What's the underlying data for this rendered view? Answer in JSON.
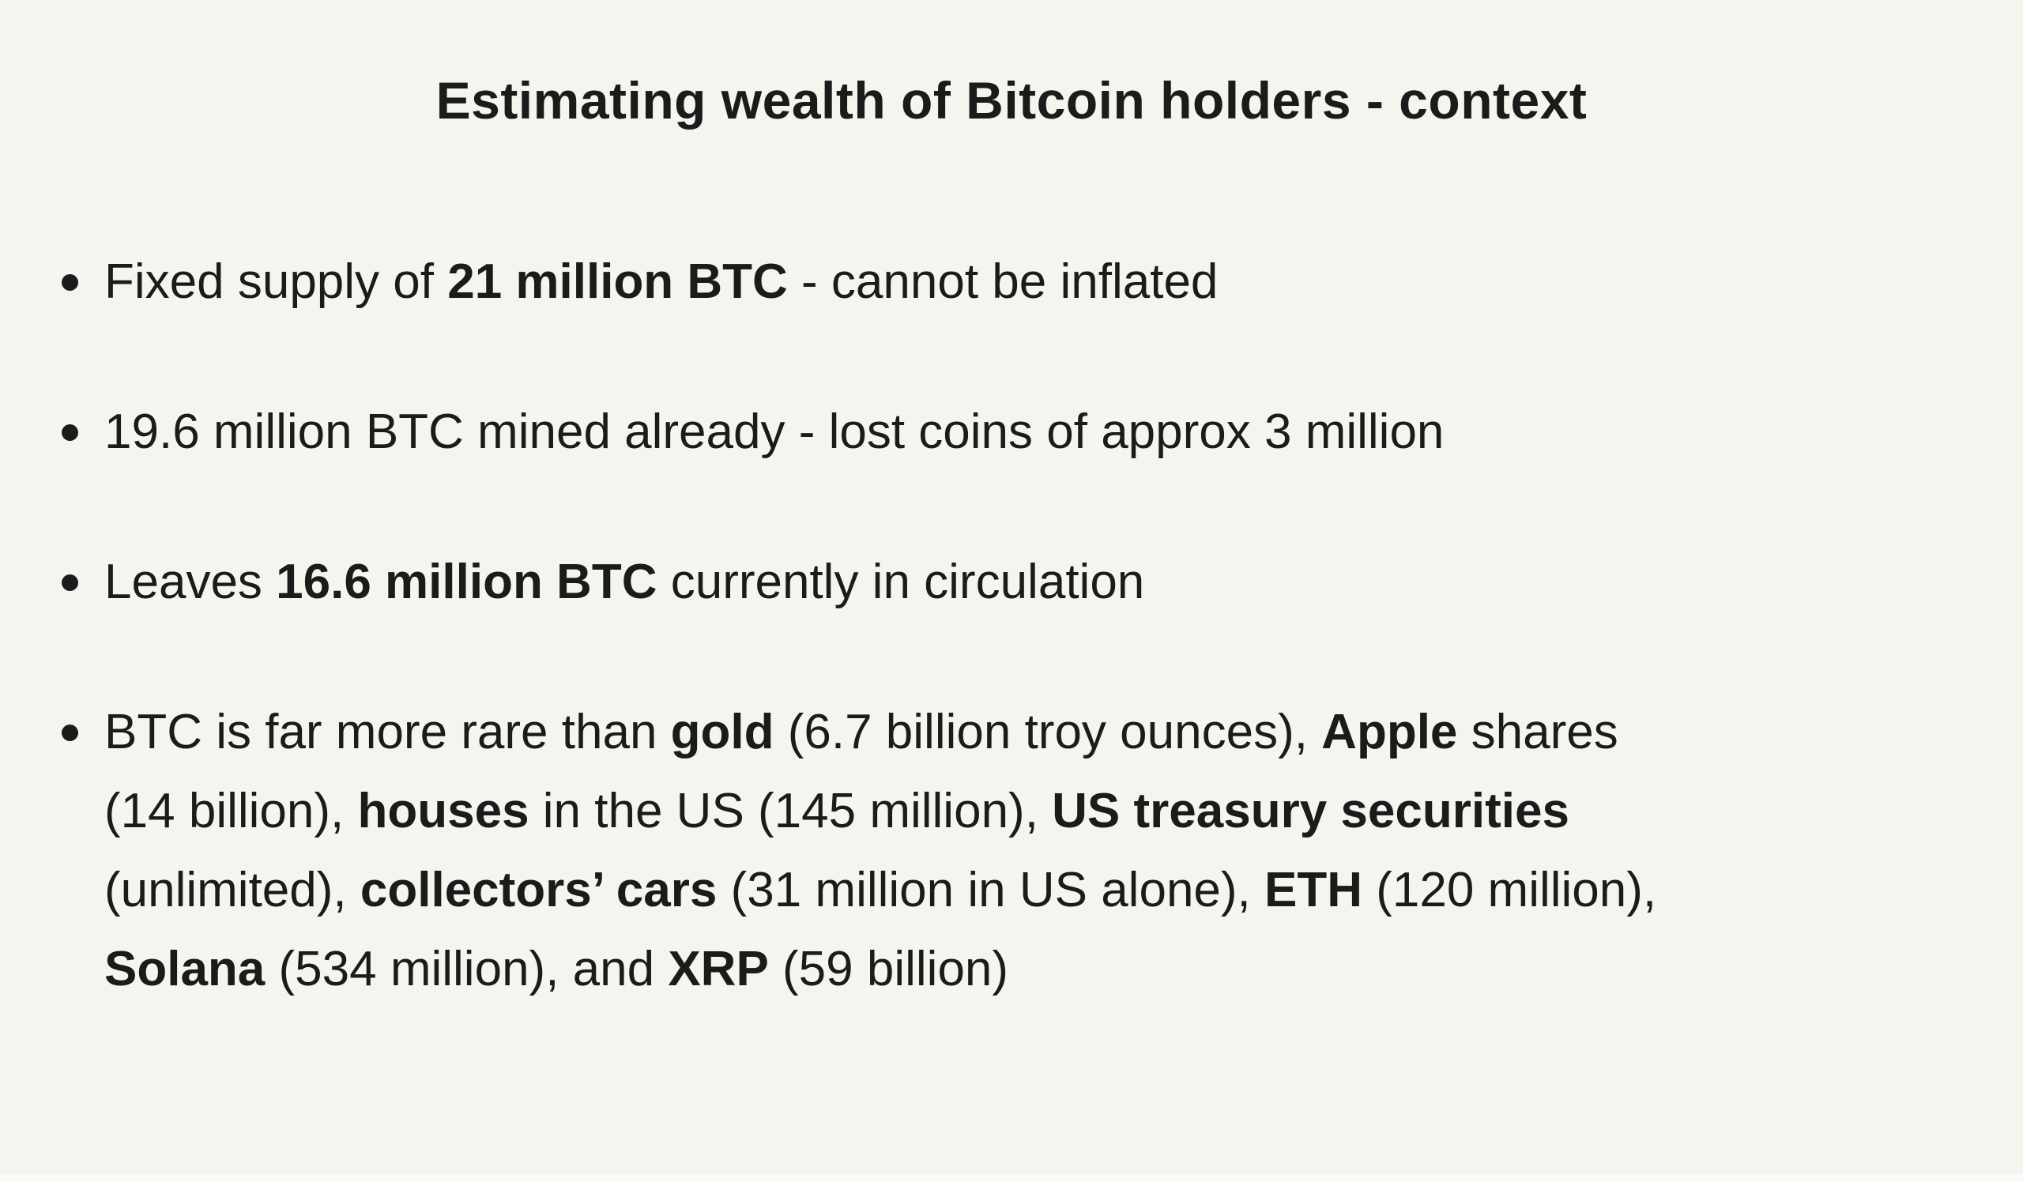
{
  "page": {
    "background_color": "#f6f4ee",
    "text_color": "#1b1b1b",
    "bottom_strip_color": "#fcfaf5"
  },
  "title": "Estimating wealth of Bitcoin holders - context",
  "bullets": [
    {
      "lines": [
        [
          {
            "t": "Fixed supply of "
          },
          {
            "t": "21 million BTC",
            "b": true
          },
          {
            "t": " - cannot be inflated"
          }
        ]
      ]
    },
    {
      "lines": [
        [
          {
            "t": "19.6 million BTC mined already - lost coins of approx 3 million"
          }
        ]
      ]
    },
    {
      "lines": [
        [
          {
            "t": "Leaves "
          },
          {
            "t": "16.6 million BTC",
            "b": true
          },
          {
            "t": " currently in circulation"
          }
        ]
      ]
    },
    {
      "lines": [
        [
          {
            "t": "BTC is far more rare than "
          },
          {
            "t": "gold",
            "b": true
          },
          {
            "t": " (6.7 billion troy ounces), "
          },
          {
            "t": "Apple",
            "b": true
          },
          {
            "t": " shares"
          }
        ],
        [
          {
            "t": "(14 billion), "
          },
          {
            "t": "houses",
            "b": true
          },
          {
            "t": " in the US (145 million), "
          },
          {
            "t": "US treasury securities",
            "b": true
          }
        ],
        [
          {
            "t": "(unlimited), "
          },
          {
            "t": "collectors’ cars",
            "b": true
          },
          {
            "t": " (31 million in US alone), "
          },
          {
            "t": "ETH",
            "b": true
          },
          {
            "t": " (120 million),"
          }
        ],
        [
          {
            "t": "Solana",
            "b": true
          },
          {
            "t": " (534 million), and "
          },
          {
            "t": "XRP",
            "b": true
          },
          {
            "t": " (59 billion)"
          }
        ]
      ]
    }
  ]
}
